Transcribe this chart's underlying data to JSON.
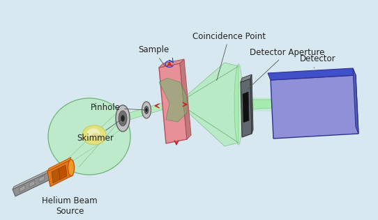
{
  "bg_color": "#d8e8f0",
  "labels": {
    "helium_beam_source": "Helium Beam\nSource",
    "skimmer": "Skimmer",
    "pinhole": "Pinhole",
    "sample": "Sample",
    "coincidence_point": "Coincidence Point",
    "detector_aperture": "Detector Aperture",
    "detector": "Detector"
  },
  "colors": {
    "green_beam": "#90ee90",
    "sample_pink": "#e89098",
    "sample_top": "#d08888",
    "sample_side": "#c07878",
    "sample_edge": "#b05060",
    "sample_green": "#70b870",
    "detector_blue_top": "#4050c8",
    "detector_blue_front": "#9090d8",
    "detector_blue_side": "#5060b8",
    "detector_edge": "#303090",
    "aperture_front": "#606870",
    "aperture_top": "#808890",
    "aperture_side": "#505860",
    "nozzle_orange": "#e07820",
    "nozzle_dark": "#c05000",
    "nozzle_top": "#f09030",
    "tube_gray": "#909090",
    "tube_dark": "#606060",
    "source_yellow": "#e8e070",
    "source_cream": "#f0f0c0",
    "arrow_red": "#cc2020",
    "arrow_blue": "#2040cc",
    "label_color": "#222222"
  },
  "font_size": 8.5,
  "font_family": "DejaVu Sans"
}
